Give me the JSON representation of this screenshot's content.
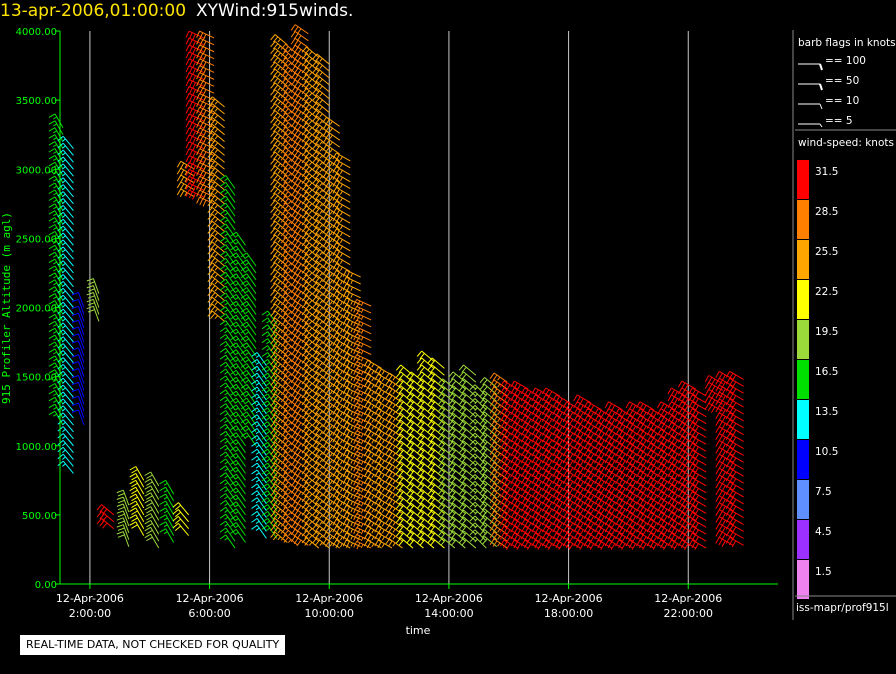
{
  "header": {
    "timestamp": "13-apr-2006,01:00:00",
    "title": "XYWind:915winds."
  },
  "chart_data": {
    "type": "scatter",
    "subtype": "wind-barb time-height plot",
    "xlabel": "time",
    "ylabel": "915 Profiler Altitude (m agl)",
    "y_ticks": [
      "0.00",
      "500.00",
      "1000.00",
      "1500.00",
      "2000.00",
      "2500.00",
      "3000.00",
      "3500.00",
      "4000.00"
    ],
    "ylim": [
      0,
      4000
    ],
    "x_ticks": [
      {
        "hour": 2,
        "date": "12-Apr-2006",
        "time": "2:00:00"
      },
      {
        "hour": 6,
        "date": "12-Apr-2006",
        "time": "6:00:00"
      },
      {
        "hour": 10,
        "date": "12-Apr-2006",
        "time": "10:00:00"
      },
      {
        "hour": 14,
        "date": "12-Apr-2006",
        "time": "14:00:00"
      },
      {
        "hour": 18,
        "date": "12-Apr-2006",
        "time": "18:00:00"
      },
      {
        "hour": 22,
        "date": "12-Apr-2006",
        "time": "22:00:00"
      }
    ],
    "xlim_hours": [
      1.0,
      25.0
    ],
    "grid": "vertical lines at tick hours",
    "barbs": [
      {
        "hour": 1.1,
        "alt_range": [
          1150,
          3300
        ],
        "speed": 17,
        "dir": 210
      },
      {
        "hour": 1.45,
        "alt_range": [
          800,
          3150
        ],
        "speed": 15,
        "dir": 220
      },
      {
        "hour": 1.8,
        "alt_range": [
          1150,
          2000
        ],
        "speed": 12,
        "dir": 200
      },
      {
        "hour": 2.3,
        "alt_range": [
          1900,
          2100
        ],
        "speed": 20,
        "dir": 200
      },
      {
        "hour": 2.8,
        "alt_range": [
          400,
          520
        ],
        "speed": 31,
        "dir": 230
      },
      {
        "hour": 3.3,
        "alt_range": [
          270,
          600
        ],
        "speed": 20,
        "dir": 200
      },
      {
        "hour": 3.8,
        "alt_range": [
          350,
          780
        ],
        "speed": 24,
        "dir": 210
      },
      {
        "hour": 4.3,
        "alt_range": [
          260,
          720
        ],
        "speed": 20,
        "dir": 210
      },
      {
        "hour": 4.8,
        "alt_range": [
          300,
          650
        ],
        "speed": 18,
        "dir": 210
      },
      {
        "hour": 5.3,
        "alt_range": [
          350,
          500
        ],
        "speed": 24,
        "dir": 220
      },
      {
        "hour": 5.5,
        "alt_range": [
          2800,
          3000
        ],
        "speed": 26,
        "dir": 240
      },
      {
        "hour": 5.8,
        "alt_range": [
          2800,
          3950
        ],
        "speed": 32,
        "dir": 245
      },
      {
        "hour": 6.15,
        "alt_range": [
          2750,
          3950
        ],
        "speed": 30,
        "dir": 245
      },
      {
        "hour": 6.5,
        "alt_range": [
          1900,
          3450
        ],
        "speed": 25,
        "dir": 230
      },
      {
        "hour": 6.85,
        "alt_range": [
          260,
          2900
        ],
        "speed": 16,
        "dir": 215
      },
      {
        "hour": 7.2,
        "alt_range": [
          300,
          2450
        ],
        "speed": 16,
        "dir": 215
      },
      {
        "hour": 7.55,
        "alt_range": [
          1000,
          2300
        ],
        "speed": 17,
        "dir": 215
      },
      {
        "hour": 7.9,
        "alt_range": [
          330,
          1600
        ],
        "speed": 15,
        "dir": 215
      },
      {
        "hour": 8.25,
        "alt_range": [
          330,
          1900
        ],
        "speed": 16,
        "dir": 215
      },
      {
        "hour": 8.6,
        "alt_range": [
          300,
          3900
        ],
        "speed": 27,
        "dir": 230
      },
      {
        "hour": 8.95,
        "alt_range": [
          280,
          3850
        ],
        "speed": 28,
        "dir": 230
      },
      {
        "hour": 9.3,
        "alt_range": [
          280,
          3980
        ],
        "speed": 30,
        "dir": 235
      },
      {
        "hour": 9.65,
        "alt_range": [
          260,
          3850
        ],
        "speed": 26,
        "dir": 230
      },
      {
        "hour": 10.0,
        "alt_range": [
          260,
          3800
        ],
        "speed": 26,
        "dir": 230
      },
      {
        "hour": 10.35,
        "alt_range": [
          260,
          3350
        ],
        "speed": 26,
        "dir": 235
      },
      {
        "hour": 10.7,
        "alt_range": [
          260,
          3100
        ],
        "speed": 27,
        "dir": 240
      },
      {
        "hour": 11.05,
        "alt_range": [
          270,
          2250
        ],
        "speed": 27,
        "dir": 245
      },
      {
        "hour": 11.4,
        "alt_range": [
          260,
          2050
        ],
        "speed": 29,
        "dir": 245
      },
      {
        "hour": 11.75,
        "alt_range": [
          260,
          1600
        ],
        "speed": 27,
        "dir": 240
      },
      {
        "hour": 12.1,
        "alt_range": [
          260,
          1550
        ],
        "speed": 26,
        "dir": 240
      },
      {
        "hour": 12.45,
        "alt_range": [
          260,
          1500
        ],
        "speed": 25,
        "dir": 235
      },
      {
        "hour": 12.8,
        "alt_range": [
          260,
          1550
        ],
        "speed": 24,
        "dir": 230
      },
      {
        "hour": 13.15,
        "alt_range": [
          260,
          1500
        ],
        "speed": 23,
        "dir": 230
      },
      {
        "hour": 13.5,
        "alt_range": [
          260,
          1650
        ],
        "speed": 22,
        "dir": 230
      },
      {
        "hour": 13.85,
        "alt_range": [
          260,
          1600
        ],
        "speed": 22,
        "dir": 230
      },
      {
        "hour": 14.2,
        "alt_range": [
          260,
          1450
        ],
        "speed": 21,
        "dir": 230
      },
      {
        "hour": 14.55,
        "alt_range": [
          260,
          1500
        ],
        "speed": 21,
        "dir": 230
      },
      {
        "hour": 14.9,
        "alt_range": [
          260,
          1550
        ],
        "speed": 20,
        "dir": 230
      },
      {
        "hour": 15.25,
        "alt_range": [
          260,
          1400
        ],
        "speed": 19,
        "dir": 225
      },
      {
        "hour": 15.6,
        "alt_range": [
          270,
          1450
        ],
        "speed": 21,
        "dir": 230
      },
      {
        "hour": 15.95,
        "alt_range": [
          260,
          1500
        ],
        "speed": 28,
        "dir": 235
      },
      {
        "hour": 16.3,
        "alt_range": [
          260,
          1450
        ],
        "speed": 31,
        "dir": 240
      },
      {
        "hour": 16.65,
        "alt_range": [
          260,
          1450
        ],
        "speed": 31,
        "dir": 240
      },
      {
        "hour": 17.0,
        "alt_range": [
          260,
          1400
        ],
        "speed": 31,
        "dir": 240
      },
      {
        "hour": 17.35,
        "alt_range": [
          260,
          1400
        ],
        "speed": 31,
        "dir": 240
      },
      {
        "hour": 17.7,
        "alt_range": [
          260,
          1400
        ],
        "speed": 31,
        "dir": 240
      },
      {
        "hour": 18.05,
        "alt_range": [
          260,
          1350
        ],
        "speed": 31,
        "dir": 240
      },
      {
        "hour": 18.4,
        "alt_range": [
          260,
          1300
        ],
        "speed": 31,
        "dir": 240
      },
      {
        "hour": 18.75,
        "alt_range": [
          260,
          1350
        ],
        "speed": 31,
        "dir": 240
      },
      {
        "hour": 19.1,
        "alt_range": [
          260,
          1300
        ],
        "speed": 31,
        "dir": 240
      },
      {
        "hour": 19.45,
        "alt_range": [
          260,
          1250
        ],
        "speed": 31,
        "dir": 240
      },
      {
        "hour": 19.8,
        "alt_range": [
          260,
          1300
        ],
        "speed": 31,
        "dir": 240
      },
      {
        "hour": 20.15,
        "alt_range": [
          260,
          1250
        ],
        "speed": 31,
        "dir": 240
      },
      {
        "hour": 20.5,
        "alt_range": [
          260,
          1300
        ],
        "speed": 31,
        "dir": 240
      },
      {
        "hour": 20.85,
        "alt_range": [
          260,
          1300
        ],
        "speed": 31,
        "dir": 240
      },
      {
        "hour": 21.2,
        "alt_range": [
          260,
          1250
        ],
        "speed": 31,
        "dir": 240
      },
      {
        "hour": 21.55,
        "alt_range": [
          260,
          1300
        ],
        "speed": 31,
        "dir": 240
      },
      {
        "hour": 21.9,
        "alt_range": [
          260,
          1400
        ],
        "speed": 31,
        "dir": 240
      },
      {
        "hour": 22.25,
        "alt_range": [
          260,
          1450
        ],
        "speed": 31,
        "dir": 240
      },
      {
        "hour": 22.6,
        "alt_range": [
          260,
          1400
        ],
        "speed": 31,
        "dir": 240
      },
      {
        "hour": 23.15,
        "alt_range": [
          1250,
          1480
        ],
        "speed": 31,
        "dir": 240
      },
      {
        "hour": 23.5,
        "alt_range": [
          280,
          1500
        ],
        "speed": 31,
        "dir": 240
      },
      {
        "hour": 23.85,
        "alt_range": [
          280,
          1500
        ],
        "speed": 31,
        "dir": 240
      }
    ]
  },
  "legend": {
    "barb_title": "barb flags in knots",
    "barb_entries": [
      {
        "label": "== 100",
        "knots": 100
      },
      {
        "label": "== 50",
        "knots": 50
      },
      {
        "label": "== 10",
        "knots": 10
      },
      {
        "label": "== 5",
        "knots": 5
      }
    ],
    "speed_title": "wind-speed: knots",
    "speed_scale": [
      {
        "label": "31.5",
        "color": "#ff0000"
      },
      {
        "label": "28.5",
        "color": "#ff7f00"
      },
      {
        "label": "25.5",
        "color": "#ffa500"
      },
      {
        "label": "22.5",
        "color": "#ffff00"
      },
      {
        "label": "19.5",
        "color": "#9bd93a"
      },
      {
        "label": "16.5",
        "color": "#00e000"
      },
      {
        "label": "13.5",
        "color": "#00ffff"
      },
      {
        "label": "10.5",
        "color": "#0000ff"
      },
      {
        "label": "7.5",
        "color": "#5f8fff"
      },
      {
        "label": "4.5",
        "color": "#9b30ff"
      },
      {
        "label": "1.5",
        "color": "#ee82ee"
      }
    ],
    "source": "iss-mapr/prof915l"
  },
  "notice": "REAL-TIME DATA, NOT CHECKED FOR QUALITY",
  "colors": {
    "axis": "#00ff00",
    "grid": "#c8c8c8",
    "background": "#000000",
    "title_timestamp": "#ffe400"
  }
}
